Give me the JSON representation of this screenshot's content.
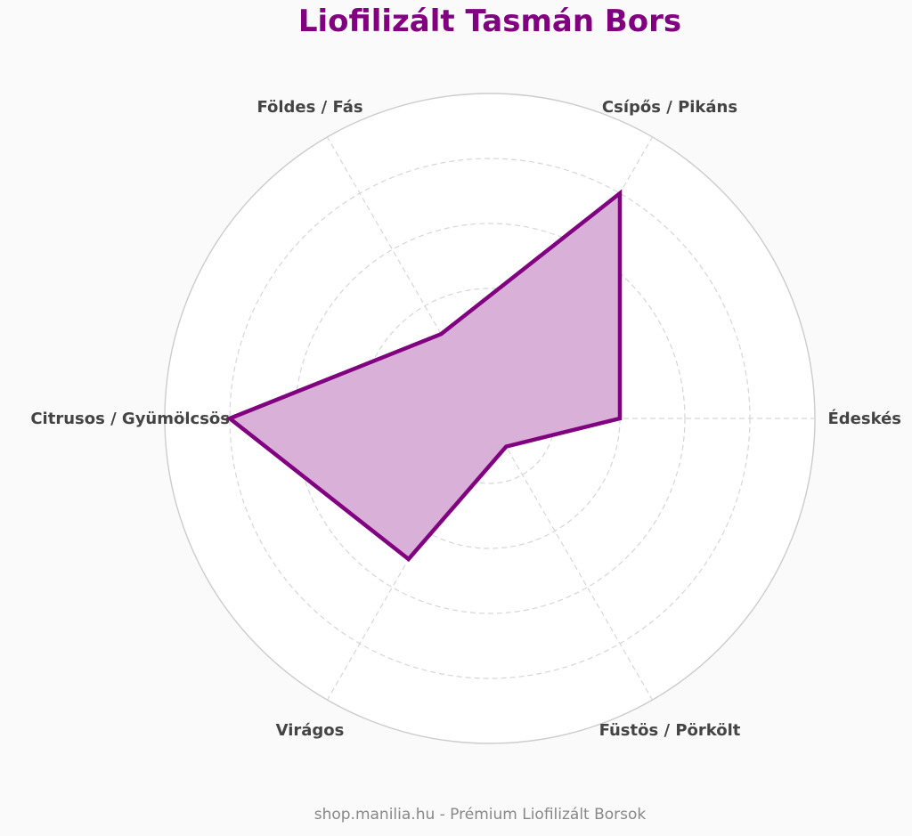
{
  "chart_data": {
    "type": "radar",
    "title": "Liofilizált Tasmán Bors",
    "axes": [
      "Édeskés",
      "Csípős / Pikáns",
      "Földes / Fás",
      "Citrusos / Gyümölcsös",
      "Virágos",
      "Füstös / Pörkölt"
    ],
    "values": [
      2,
      4,
      1.5,
      4,
      2.5,
      0.5
    ],
    "rmax": 5,
    "ticks": [
      1,
      2,
      3,
      4
    ],
    "grid": true
  },
  "footer": "shop.manilia.hu - Prémium Liofilizált Borsok",
  "colors": {
    "title": "#800080",
    "series_line": "#800080",
    "series_fill": "#d8b0d8",
    "grid": "#d6d6d6",
    "outer_circle": "#cccccc",
    "label": "#444444",
    "footer": "#888888",
    "plot_bg": "#ffffff"
  }
}
